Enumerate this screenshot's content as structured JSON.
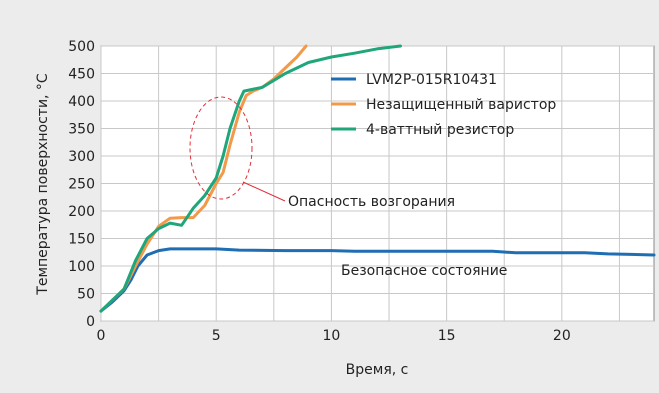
{
  "chart_data": {
    "type": "line",
    "title": "",
    "xlabel": "Время, с",
    "ylabel": "Температура поверхности, °C",
    "xlim": [
      0,
      24
    ],
    "ylim": [
      0,
      500
    ],
    "xticks": [
      0,
      5,
      10,
      15,
      20
    ],
    "yticks": [
      0,
      50,
      100,
      150,
      200,
      250,
      300,
      350,
      400,
      450,
      500
    ],
    "grid": true,
    "legend_position": "top-right",
    "series": [
      {
        "name": "LVM2P-015R10431",
        "color": "#1f6db3",
        "x": [
          0,
          0.5,
          1,
          1.3,
          1.6,
          2,
          2.5,
          3,
          4,
          5,
          6,
          8,
          10,
          11,
          15,
          17,
          18,
          19,
          20,
          21,
          22,
          23,
          24
        ],
        "y": [
          18,
          35,
          55,
          75,
          100,
          120,
          128,
          131,
          131,
          131,
          129,
          128,
          128,
          127,
          127,
          127,
          124,
          124,
          124,
          124,
          122,
          121,
          120
        ]
      },
      {
        "name": "Незащищенный варистор",
        "color": "#f2994a",
        "x": [
          0,
          0.5,
          1,
          1.5,
          2,
          2.5,
          3,
          3.5,
          4,
          4.5,
          5,
          5.3,
          5.6,
          6,
          6.3,
          6.6,
          7,
          7.5,
          8,
          8.5,
          8.9
        ],
        "y": [
          18,
          38,
          58,
          100,
          140,
          172,
          187,
          188,
          188,
          210,
          250,
          270,
          320,
          380,
          410,
          418,
          425,
          440,
          460,
          480,
          500
        ]
      },
      {
        "name": "4-ваттный резистор",
        "color": "#1fa67a",
        "x": [
          0,
          0.5,
          1,
          1.5,
          2,
          2.5,
          3,
          3.5,
          4,
          4.5,
          5,
          5.3,
          5.6,
          6,
          6.2,
          7,
          8,
          9,
          10,
          11,
          12,
          13
        ],
        "y": [
          18,
          38,
          58,
          110,
          150,
          168,
          178,
          174,
          205,
          228,
          260,
          300,
          350,
          400,
          418,
          425,
          450,
          470,
          480,
          487,
          495,
          500
        ]
      }
    ],
    "annotations": [
      {
        "text": "Опасность возгорания",
        "target_x": 5.2,
        "target_y": 320,
        "shape": "dashed-ellipse",
        "color": "#e0303a"
      },
      {
        "text": "Безопасное состояние",
        "target_x": 17.3,
        "target_y": 90
      }
    ]
  }
}
